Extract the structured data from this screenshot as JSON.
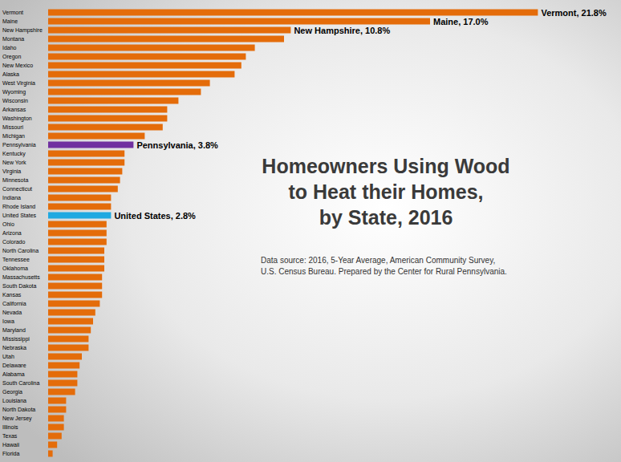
{
  "chart_data": {
    "type": "bar",
    "title": "Homeowners Using Wood\nto Heat their Homes,\nby State, 2016",
    "subtitle": "Data source: 2016, 5-Year Average, American Community Survey,\nU.S. Census Bureau. Prepared by the Center for Rural Pennsylvania.",
    "orientation": "horizontal",
    "categories": [
      "Vermont",
      "Maine",
      "New Hampshire",
      "Montana",
      "Idaho",
      "Oregon",
      "New Mexico",
      "Alaska",
      "West Virginia",
      "Wyoming",
      "Wisconsin",
      "Arkansas",
      "Washington",
      "Missouri",
      "Michigan",
      "Pennsylvania",
      "Kentucky",
      "New York",
      "Virginia",
      "Minnesota",
      "Connecticut",
      "Indiana",
      "Rhode Island",
      "United States",
      "Ohio",
      "Arizona",
      "Colorado",
      "North Carolina",
      "Tennessee",
      "Oklahoma",
      "Massachusetts",
      "South Dakota",
      "Kansas",
      "California",
      "Nevada",
      "Iowa",
      "Maryland",
      "Mississippi",
      "Nebraska",
      "Utah",
      "Delaware",
      "Alabama",
      "South Carolina",
      "Georgia",
      "Louisiana",
      "North Dakota",
      "New Jersey",
      "Illinois",
      "Texas",
      "Hawaii",
      "Florida"
    ],
    "values": [
      21.8,
      17.0,
      10.8,
      10.5,
      9.2,
      8.8,
      8.6,
      8.3,
      7.2,
      6.8,
      5.8,
      5.3,
      5.3,
      5.1,
      4.3,
      3.8,
      3.4,
      3.4,
      3.3,
      3.2,
      3.1,
      2.8,
      2.8,
      2.8,
      2.6,
      2.6,
      2.6,
      2.5,
      2.5,
      2.5,
      2.4,
      2.4,
      2.4,
      2.3,
      2.1,
      2.0,
      1.9,
      1.8,
      1.8,
      1.5,
      1.4,
      1.3,
      1.3,
      1.2,
      0.8,
      0.8,
      0.7,
      0.7,
      0.6,
      0.4,
      0.2
    ],
    "value_labels": [
      "Vermont, 21.8%",
      "Maine, 17.0%",
      "New Hampshire, 10.8%",
      null,
      null,
      null,
      null,
      null,
      null,
      null,
      null,
      null,
      null,
      null,
      null,
      "Pennsylvania, 3.8%",
      null,
      null,
      null,
      null,
      null,
      null,
      null,
      "United States, 2.8%",
      null,
      null,
      null,
      null,
      null,
      null,
      null,
      null,
      null,
      null,
      null,
      null,
      null,
      null,
      null,
      null,
      null,
      null,
      null,
      null,
      null,
      null,
      null,
      null,
      null,
      null,
      null
    ],
    "colors": [
      "#e46c0a",
      "#e46c0a",
      "#e46c0a",
      "#e46c0a",
      "#e46c0a",
      "#e46c0a",
      "#e46c0a",
      "#e46c0a",
      "#e46c0a",
      "#e46c0a",
      "#e46c0a",
      "#e46c0a",
      "#e46c0a",
      "#e46c0a",
      "#e46c0a",
      "#7030a0",
      "#e46c0a",
      "#e46c0a",
      "#e46c0a",
      "#e46c0a",
      "#e46c0a",
      "#e46c0a",
      "#e46c0a",
      "#1fa9e1",
      "#e46c0a",
      "#e46c0a",
      "#e46c0a",
      "#e46c0a",
      "#e46c0a",
      "#e46c0a",
      "#e46c0a",
      "#e46c0a",
      "#e46c0a",
      "#e46c0a",
      "#e46c0a",
      "#e46c0a",
      "#e46c0a",
      "#e46c0a",
      "#e46c0a",
      "#e46c0a",
      "#e46c0a",
      "#e46c0a",
      "#e46c0a",
      "#e46c0a",
      "#e46c0a",
      "#e46c0a",
      "#e46c0a",
      "#e46c0a",
      "#e46c0a",
      "#e46c0a",
      "#e46c0a"
    ],
    "xlim": [
      0,
      25.5
    ],
    "data_labels": true,
    "tick_labels": "y",
    "grid": false
  }
}
